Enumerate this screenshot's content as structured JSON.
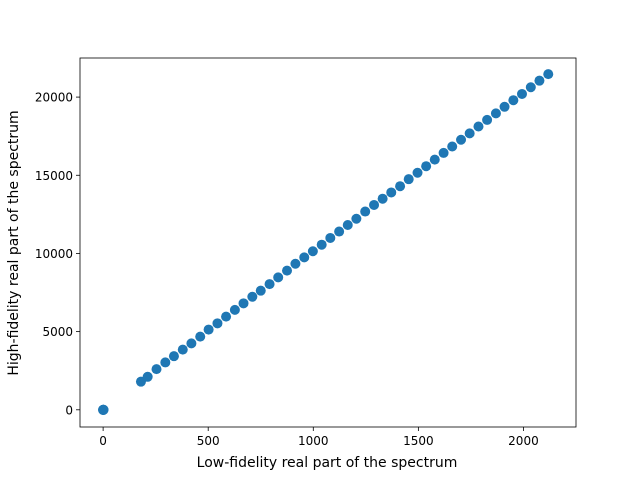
{
  "chart_data": {
    "type": "scatter",
    "title": "",
    "xlabel": "Low-fidelity real part of the spectrum",
    "ylabel": "High-fidelity real part of the spectrum",
    "xlim": [
      -110,
      2250
    ],
    "ylim": [
      -1100,
      22500
    ],
    "xticks": [
      0,
      500,
      1000,
      1500,
      2000
    ],
    "yticks": [
      0,
      5000,
      10000,
      15000,
      20000
    ],
    "grid": false,
    "legend": "none",
    "marker_color": "#1f77b4",
    "series": [
      {
        "points": [
          [
            0,
            0
          ],
          [
            0,
            -10
          ],
          [
            1,
            0
          ],
          [
            1,
            -5
          ],
          [
            2,
            0
          ],
          [
            180,
            1800
          ],
          [
            212,
            2110
          ],
          [
            254,
            2600
          ],
          [
            296,
            3030
          ],
          [
            337,
            3430
          ],
          [
            379,
            3850
          ],
          [
            420,
            4250
          ],
          [
            462,
            4680
          ],
          [
            502,
            5130
          ],
          [
            544,
            5530
          ],
          [
            585,
            5960
          ],
          [
            627,
            6390
          ],
          [
            668,
            6810
          ],
          [
            710,
            7230
          ],
          [
            750,
            7620
          ],
          [
            792,
            8040
          ],
          [
            833,
            8470
          ],
          [
            875,
            8900
          ],
          [
            915,
            9340
          ],
          [
            957,
            9750
          ],
          [
            998,
            10140
          ],
          [
            1040,
            10560
          ],
          [
            1081,
            10990
          ],
          [
            1123,
            11400
          ],
          [
            1164,
            11820
          ],
          [
            1205,
            12220
          ],
          [
            1247,
            12680
          ],
          [
            1289,
            13100
          ],
          [
            1330,
            13500
          ],
          [
            1371,
            13900
          ],
          [
            1413,
            14300
          ],
          [
            1454,
            14750
          ],
          [
            1496,
            15160
          ],
          [
            1537,
            15580
          ],
          [
            1578,
            16000
          ],
          [
            1620,
            16430
          ],
          [
            1661,
            16840
          ],
          [
            1703,
            17270
          ],
          [
            1744,
            17680
          ],
          [
            1786,
            18120
          ],
          [
            1827,
            18540
          ],
          [
            1869,
            18960
          ],
          [
            1910,
            19380
          ],
          [
            1952,
            19800
          ],
          [
            1993,
            20200
          ],
          [
            2035,
            20630
          ],
          [
            2076,
            21050
          ],
          [
            2118,
            21470
          ]
        ]
      }
    ]
  }
}
